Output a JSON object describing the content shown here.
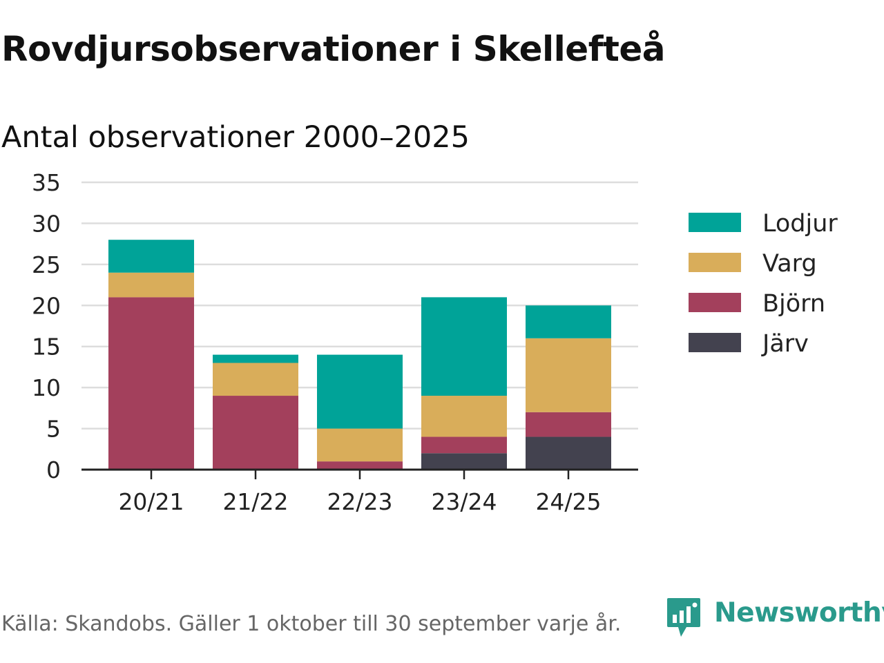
{
  "title": "Rovdjursobservationer i Skellefteå",
  "subtitle": "Antal observationer 2000–2025",
  "source": "Källa: Skandobs. Gäller 1 oktober till 30 september varje år.",
  "brand": {
    "name": "Newsworthy",
    "icon": "newsworthy-logo-icon",
    "color": "#2a9a8c"
  },
  "chart_data": {
    "type": "bar",
    "stacked": true,
    "title": "Rovdjursobservationer i Skellefteå",
    "subtitle": "Antal observationer 2000–2025",
    "xlabel": "",
    "ylabel": "",
    "categories": [
      "20/21",
      "21/22",
      "22/23",
      "23/24",
      "24/25"
    ],
    "ylim": [
      0,
      35
    ],
    "yticks": [
      0,
      5,
      10,
      15,
      20,
      25,
      30,
      35
    ],
    "grid": true,
    "legend_position": "right",
    "series": [
      {
        "name": "Järv",
        "color": "#43424f",
        "values": [
          0,
          0,
          0,
          2,
          4
        ]
      },
      {
        "name": "Björn",
        "color": "#a3405c",
        "values": [
          21,
          9,
          1,
          2,
          3
        ]
      },
      {
        "name": "Varg",
        "color": "#d9ad5a",
        "values": [
          3,
          4,
          4,
          5,
          9
        ]
      },
      {
        "name": "Lodjur",
        "color": "#00a398",
        "values": [
          4,
          1,
          9,
          12,
          4
        ]
      }
    ],
    "legend_order": [
      "Lodjur",
      "Varg",
      "Björn",
      "Järv"
    ]
  }
}
